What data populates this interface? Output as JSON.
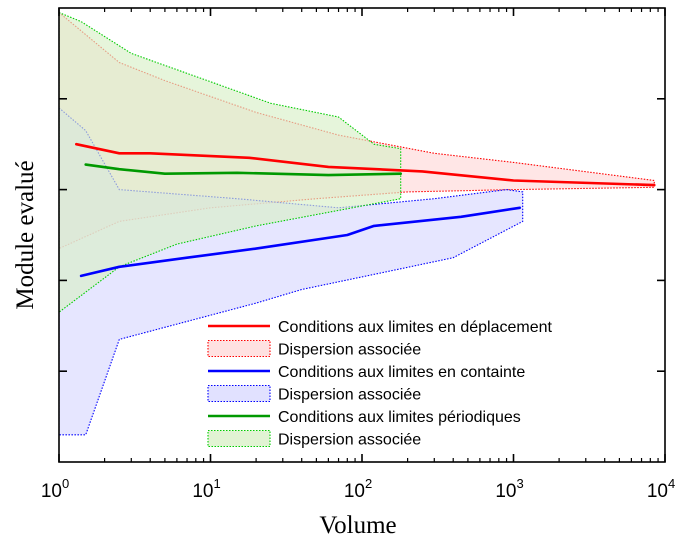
{
  "chart_data": {
    "type": "line",
    "title": "",
    "xlabel": "Volume",
    "ylabel": "Module evalué",
    "x_scale": "log",
    "xlim": [
      1,
      10000
    ],
    "ylim": [
      0,
      1
    ],
    "y_tick_labels_shown": false,
    "x_ticks": [
      {
        "base": "10",
        "exp": "0"
      },
      {
        "base": "10",
        "exp": "1"
      },
      {
        "base": "10",
        "exp": "2"
      },
      {
        "base": "10",
        "exp": "3"
      },
      {
        "base": "10",
        "exp": "4"
      }
    ],
    "legend_position": "bottom-right",
    "series": [
      {
        "name": "Conditions aux limites en déplacement",
        "color": "#ff0000",
        "points": [
          [
            1.3,
            0.7
          ],
          [
            2.5,
            0.68
          ],
          [
            4,
            0.68
          ],
          [
            18,
            0.67
          ],
          [
            60,
            0.65
          ],
          [
            250,
            0.64
          ],
          [
            1000,
            0.62
          ],
          [
            8500,
            0.61
          ]
        ],
        "dispersion": {
          "name": "Dispersion associée",
          "fill": "#ffd9d9",
          "border": "#ff0000",
          "upper": [
            [
              1,
              0.99
            ],
            [
              2.5,
              0.88
            ],
            [
              5,
              0.84
            ],
            [
              20,
              0.77
            ],
            [
              70,
              0.72
            ],
            [
              300,
              0.68
            ],
            [
              1000,
              0.66
            ],
            [
              8500,
              0.62
            ]
          ],
          "lower": [
            [
              1,
              0.47
            ],
            [
              2.5,
              0.53
            ],
            [
              10,
              0.56
            ],
            [
              50,
              0.58
            ],
            [
              200,
              0.595
            ],
            [
              1000,
              0.6
            ],
            [
              8500,
              0.605
            ]
          ]
        }
      },
      {
        "name": "Conditions aux limites en containte",
        "color": "#0000ff",
        "points": [
          [
            1.4,
            0.41
          ],
          [
            2.5,
            0.43
          ],
          [
            7,
            0.45
          ],
          [
            20,
            0.47
          ],
          [
            80,
            0.5
          ],
          [
            120,
            0.52
          ],
          [
            450,
            0.54
          ],
          [
            1100,
            0.56
          ]
        ],
        "dispersion": {
          "name": "Dispersion associée",
          "fill": "#d9d9ff",
          "border": "#0000ff",
          "upper": [
            [
              1,
              0.78
            ],
            [
              1.5,
              0.73
            ],
            [
              2.5,
              0.6
            ],
            [
              15,
              0.58
            ],
            [
              70,
              0.56
            ],
            [
              300,
              0.58
            ],
            [
              900,
              0.6
            ],
            [
              1150,
              0.595
            ]
          ],
          "lower": [
            [
              1,
              0.06
            ],
            [
              1.5,
              0.06
            ],
            [
              2.5,
              0.27
            ],
            [
              20,
              0.35
            ],
            [
              40,
              0.38
            ],
            [
              150,
              0.42
            ],
            [
              400,
              0.45
            ],
            [
              1150,
              0.53
            ]
          ]
        }
      },
      {
        "name": "Conditions aux limites périodiques",
        "color": "#009900",
        "points": [
          [
            1.5,
            0.655
          ],
          [
            2.5,
            0.645
          ],
          [
            5,
            0.635
          ],
          [
            15,
            0.637
          ],
          [
            60,
            0.632
          ],
          [
            180,
            0.635
          ]
        ],
        "dispersion": {
          "name": "Dispersion associée",
          "fill": "#d9f0c8",
          "border": "#00cc00",
          "upper": [
            [
              1,
              0.99
            ],
            [
              1.4,
              0.97
            ],
            [
              3,
              0.9
            ],
            [
              25,
              0.79
            ],
            [
              70,
              0.76
            ],
            [
              120,
              0.7
            ],
            [
              180,
              0.69
            ]
          ],
          "lower": [
            [
              1,
              0.33
            ],
            [
              2.5,
              0.43
            ],
            [
              6,
              0.48
            ],
            [
              20,
              0.52
            ],
            [
              60,
              0.55
            ],
            [
              180,
              0.58
            ]
          ]
        }
      }
    ]
  }
}
